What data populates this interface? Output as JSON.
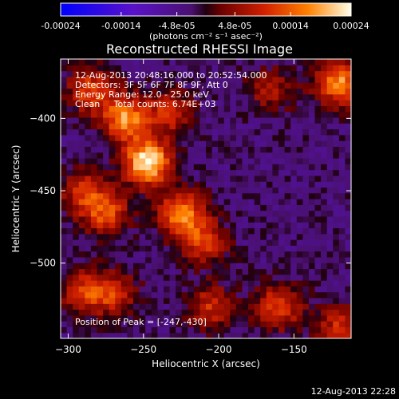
{
  "colorbar": {
    "ticks": [
      "-0.00024",
      "-0.00014",
      "-4.8e-05",
      "4.8e-05",
      "0.00014",
      "0.00024"
    ],
    "tick_values": [
      -0.00024,
      -0.00014,
      -4.8e-05,
      4.8e-05,
      0.00014,
      0.00024
    ],
    "range": [
      -0.00024,
      0.00024
    ],
    "units": "(photons cm⁻² s⁻¹ asec⁻²)"
  },
  "chart_data": {
    "type": "heatmap",
    "title": "Reconstructed RHESSI Image",
    "xlabel": "Heliocentric X (arcsec)",
    "ylabel": "Heliocentric Y (arcsec)",
    "xlim": [
      -305,
      -112
    ],
    "ylim": [
      -552,
      -359
    ],
    "xticks": [
      -300,
      -250,
      -200,
      -150
    ],
    "xtick_labels": [
      "−300",
      "−250",
      "−200",
      "−150"
    ],
    "yticks": [
      -400,
      -450,
      -500
    ],
    "ytick_labels": [
      "−400",
      "−450",
      "−500"
    ],
    "peak": [
      -247,
      -430
    ],
    "sources": [
      {
        "x": -247,
        "y": -430,
        "amp": 1.0
      },
      {
        "x": -262,
        "y": -400,
        "amp": 0.75
      },
      {
        "x": -285,
        "y": -380,
        "amp": 0.55
      },
      {
        "x": -232,
        "y": -395,
        "amp": 0.45
      },
      {
        "x": -225,
        "y": -465,
        "amp": 0.7
      },
      {
        "x": -210,
        "y": -485,
        "amp": 0.5
      },
      {
        "x": -275,
        "y": -465,
        "amp": 0.55
      },
      {
        "x": -290,
        "y": -450,
        "amp": 0.45
      },
      {
        "x": -270,
        "y": -520,
        "amp": 0.45
      },
      {
        "x": -290,
        "y": -520,
        "amp": 0.45
      },
      {
        "x": -205,
        "y": -530,
        "amp": 0.45
      },
      {
        "x": -160,
        "y": -530,
        "amp": 0.55
      },
      {
        "x": -120,
        "y": -375,
        "amp": 0.75
      },
      {
        "x": -165,
        "y": -380,
        "amp": 0.35
      },
      {
        "x": -120,
        "y": -545,
        "amp": 0.45
      }
    ],
    "annotations": [
      "12-Aug-2013 20:48:16.000 to 20:52:54.000",
      "Detectors: 3F 5F 6F 7F 8F 9F, Att 0",
      "Energy Range: 12.0 - 25.0 keV",
      "Clean     Total counts: 6.74E+03"
    ],
    "peak_label": "Position of Peak = [-247,-430]"
  },
  "footer": {
    "timestamp": "12-Aug-2013 22:28"
  }
}
